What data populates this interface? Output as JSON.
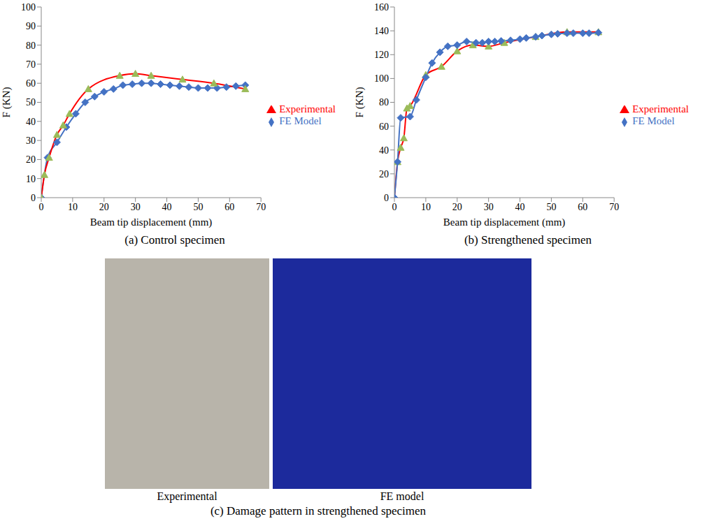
{
  "chart_data": [
    {
      "type": "line",
      "caption": "(a) Control specimen",
      "x_label": "Beam tip displacement (mm)",
      "y_label": "F (KN)",
      "xlim": [
        0,
        70
      ],
      "xticks": [
        0,
        10,
        20,
        30,
        40,
        50,
        60,
        70
      ],
      "ylim": [
        0,
        100
      ],
      "yticks": [
        0,
        10,
        20,
        30,
        40,
        50,
        60,
        70,
        80,
        90,
        100
      ],
      "grid": false,
      "legend": "right",
      "series": [
        {
          "name": "FE Model",
          "color": "#4472c4",
          "marker": "diamond",
          "x": [
            0,
            2,
            5,
            8,
            11,
            14,
            17,
            20,
            23,
            26,
            29,
            32,
            35,
            38,
            41,
            44,
            47,
            50,
            53,
            56,
            59,
            62,
            65
          ],
          "values": [
            0,
            21,
            29,
            37,
            44,
            50,
            53,
            55.5,
            57,
            59,
            59.5,
            60,
            60,
            59.5,
            59,
            58.5,
            58,
            57.5,
            57.5,
            57.5,
            58,
            58.5,
            59
          ]
        },
        {
          "name": "Experimental",
          "color": "#ff0000",
          "marker": "triangle",
          "x": [
            0,
            1,
            2.5,
            5,
            7,
            9,
            15,
            25,
            30,
            35,
            45,
            55,
            65
          ],
          "values": [
            0,
            12,
            21,
            33,
            38,
            44,
            57,
            64,
            65,
            64,
            62,
            60,
            57
          ]
        }
      ]
    },
    {
      "type": "line",
      "caption": "(b) Strengthened specimen",
      "x_label": "Beam tip displacement (mm)",
      "y_label": "F (KN)",
      "xlim": [
        0,
        70
      ],
      "xticks": [
        0,
        10,
        20,
        30,
        40,
        50,
        60,
        70
      ],
      "ylim": [
        0,
        160
      ],
      "yticks": [
        0,
        20,
        40,
        60,
        80,
        100,
        120,
        140,
        160
      ],
      "grid": false,
      "legend": "right",
      "series": [
        {
          "name": "Experimental",
          "color": "#ff0000",
          "marker": "triangle",
          "x": [
            0,
            1,
            2,
            3,
            4,
            5,
            10,
            15,
            20,
            25,
            30,
            35,
            45,
            55,
            65
          ],
          "values": [
            0,
            30,
            42,
            50,
            75,
            77,
            103,
            110,
            123,
            128,
            127,
            130,
            135,
            139,
            139
          ]
        },
        {
          "name": "FE Model",
          "color": "#4472c4",
          "marker": "diamond",
          "x": [
            0,
            1,
            2,
            5,
            7,
            10,
            12,
            14.5,
            17,
            20,
            23,
            26,
            28,
            30,
            32,
            34,
            37,
            40,
            42,
            45,
            47,
            50,
            52,
            55,
            57,
            60,
            62,
            65
          ],
          "values": [
            0,
            30,
            67,
            68,
            82,
            101,
            113,
            122,
            127,
            128,
            131,
            130,
            130,
            131,
            131,
            131.5,
            132,
            133,
            134,
            135,
            136,
            137,
            137.5,
            138,
            138,
            138,
            138,
            138.5
          ]
        }
      ]
    }
  ],
  "panel_c": {
    "images": [
      "Experimental",
      "FE model"
    ],
    "caption": "(c) Damage pattern in strengthened specimen"
  }
}
